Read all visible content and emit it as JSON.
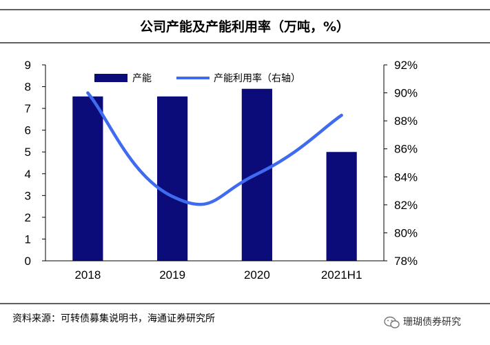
{
  "chart_data": {
    "type": "bar+line",
    "title": "公司产能及产能利用率（万吨，%）",
    "categories": [
      "2018",
      "2019",
      "2020",
      "2021H1"
    ],
    "series": [
      {
        "name": "产能",
        "type": "bar",
        "axis": "left",
        "values": [
          7.55,
          7.55,
          7.9,
          5.0
        ]
      },
      {
        "name": "产能利用率（右轴）",
        "type": "line",
        "axis": "right",
        "values": [
          90.0,
          82.6,
          84.2,
          88.4
        ]
      }
    ],
    "y_left": {
      "min": 0,
      "max": 9,
      "ticks": [
        "0",
        "1",
        "2",
        "3",
        "4",
        "5",
        "6",
        "7",
        "8",
        "9"
      ]
    },
    "y_right": {
      "min": 78,
      "max": 92,
      "ticks": [
        "78%",
        "80%",
        "82%",
        "84%",
        "86%",
        "88%",
        "90%",
        "92%"
      ]
    },
    "legend_position": "top-left"
  },
  "colors": {
    "bar": "#0b0b7a",
    "line": "#3f6bf0"
  },
  "source": "资料来源：可转债募集说明书，海通证券研究所",
  "watermark": "珊瑚债券研究"
}
